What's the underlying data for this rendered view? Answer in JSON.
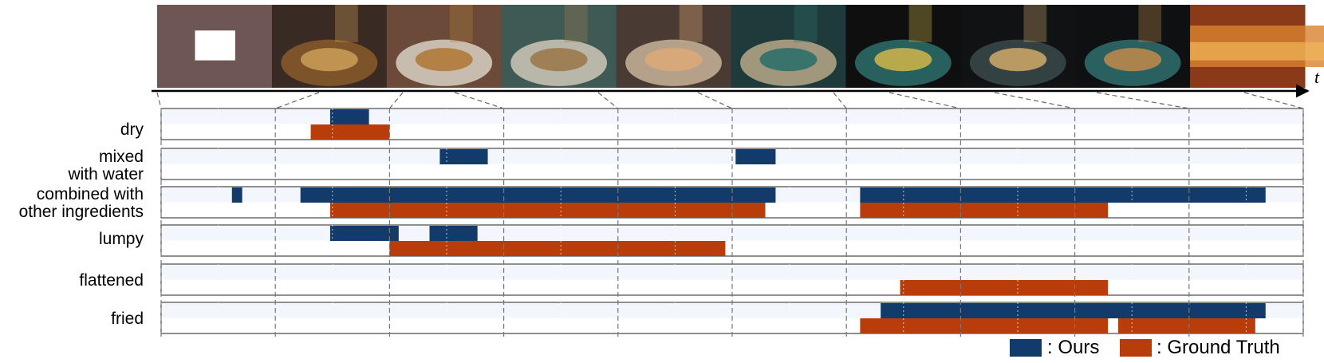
{
  "time_axis": {
    "label": "t"
  },
  "frames": [
    {
      "scene": "placeholder"
    },
    {
      "scene": "dry-mix"
    },
    {
      "scene": "flour-bowl"
    },
    {
      "scene": "mixing-bowl"
    },
    {
      "scene": "hand-mixing"
    },
    {
      "scene": "dough-bowl"
    },
    {
      "scene": "pouring-oil"
    },
    {
      "scene": "pan-frying"
    },
    {
      "scene": "pan-two-patties"
    },
    {
      "scene": "closeup-latke"
    }
  ],
  "chart_data": {
    "type": "timeline",
    "x_range": [
      0,
      10
    ],
    "rows": [
      {
        "label": [
          "dry"
        ],
        "ours": [
          [
            1.48,
            1.82
          ]
        ],
        "ground_truth": [
          [
            1.31,
            2.0
          ]
        ]
      },
      {
        "label": [
          "mixed",
          "with water"
        ],
        "ours": [
          [
            2.44,
            2.86
          ],
          [
            5.03,
            5.38
          ]
        ],
        "ground_truth": []
      },
      {
        "label": [
          "combined with",
          "other ingredients"
        ],
        "ours": [
          [
            0.62,
            0.71
          ],
          [
            1.22,
            5.38
          ],
          [
            6.12,
            9.67
          ]
        ],
        "ground_truth": [
          [
            1.48,
            5.29
          ],
          [
            6.12,
            8.29
          ]
        ]
      },
      {
        "label": [
          "lumpy"
        ],
        "ours": [
          [
            1.48,
            2.08
          ],
          [
            2.35,
            2.77
          ]
        ],
        "ground_truth": [
          [
            2.0,
            4.94
          ]
        ]
      },
      {
        "label": [
          "flattened"
        ],
        "ours": [],
        "ground_truth": [
          [
            6.47,
            8.29
          ]
        ]
      },
      {
        "label": [
          "fried"
        ],
        "ours": [
          [
            6.3,
            9.67
          ]
        ],
        "ground_truth": [
          [
            6.12,
            8.29
          ],
          [
            8.38,
            9.58
          ]
        ]
      }
    ]
  },
  "legend": [
    {
      "key": "ours",
      "label": ": Ours",
      "color": "#123a6b"
    },
    {
      "key": "ground_truth",
      "label": ": Ground Truth",
      "color": "#b83d0b"
    }
  ]
}
